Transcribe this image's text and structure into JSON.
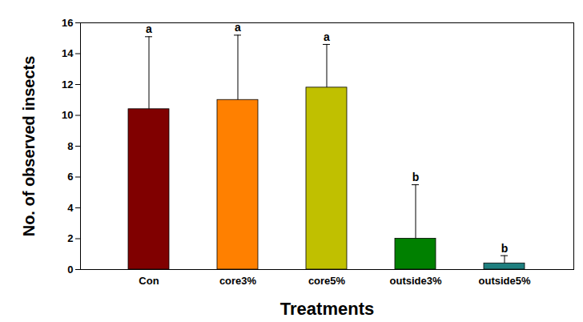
{
  "chart_data": {
    "type": "bar",
    "categories": [
      "Con",
      "core3%",
      "core5%",
      "outside3%",
      "outside5%"
    ],
    "values": [
      10.4,
      11.0,
      11.8,
      2.0,
      0.4
    ],
    "error": [
      4.7,
      4.2,
      2.8,
      3.5,
      0.5
    ],
    "letters": [
      "a",
      "a",
      "a",
      "b",
      "b"
    ],
    "colors": [
      "#800000",
      "#ff8000",
      "#c0c000",
      "#008000",
      "#1f7f7f"
    ],
    "x_label": "Treatments",
    "y_label": "No. of observed insects",
    "ylim": [
      0,
      16
    ],
    "yticks": [
      0,
      2,
      4,
      6,
      8,
      10,
      12,
      14,
      16
    ],
    "grid": false
  }
}
